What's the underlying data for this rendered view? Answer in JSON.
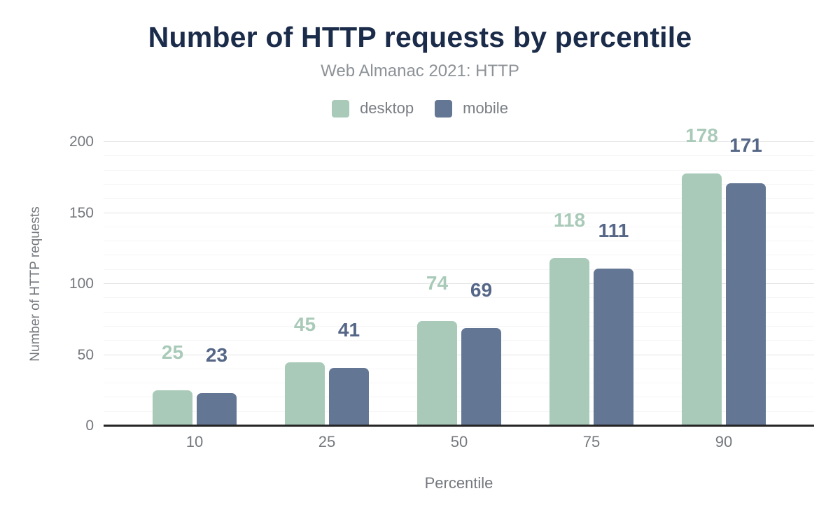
{
  "chart_data": {
    "type": "bar",
    "title": "Number of HTTP requests by percentile",
    "subtitle": "Web Almanac 2021: HTTP",
    "xlabel": "Percentile",
    "ylabel": "Number of HTTP requests",
    "categories": [
      "10",
      "25",
      "50",
      "75",
      "90"
    ],
    "series": [
      {
        "name": "desktop",
        "color": "#a9cab9",
        "label_color": "#a9cab9",
        "values": [
          25,
          45,
          74,
          118,
          178
        ]
      },
      {
        "name": "mobile",
        "color": "#637694",
        "label_color": "#556687",
        "values": [
          23,
          41,
          69,
          111,
          171
        ]
      }
    ],
    "ylim": [
      0,
      200
    ],
    "y_ticks": [
      0,
      50,
      100,
      150,
      200
    ],
    "minor_grid_step": 10,
    "grid": true,
    "legend_position": "top"
  },
  "theme": {
    "title_color": "#1b2b4a",
    "subtitle_color": "#8d9297",
    "tick_text_color": "#74787d",
    "legend_text_color": "#797e84",
    "major_grid_color": "#e3e3e3",
    "minor_grid_color": "#f5f5f5",
    "axis_line_color": "#262626",
    "background_color": "#ffffff"
  }
}
